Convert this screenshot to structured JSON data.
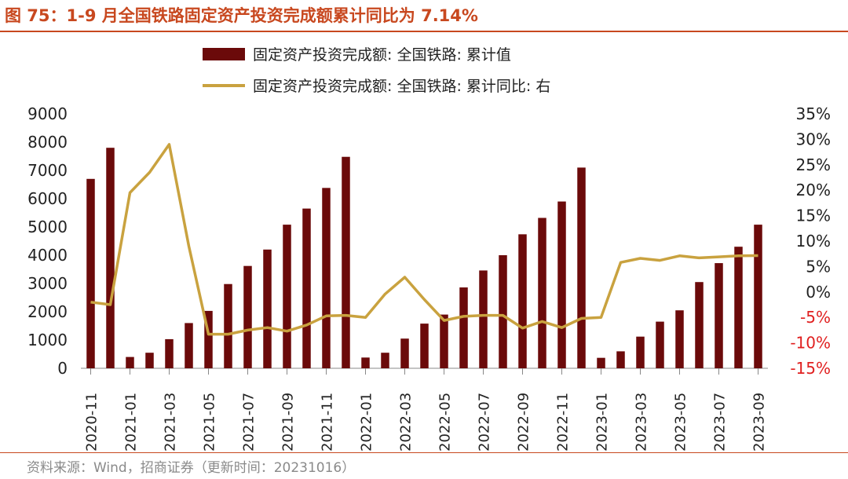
{
  "title": "图 75：1-9 月全国铁路固定资产投资完成额累计同比为 7.14%",
  "source": "资料来源：Wind，招商证券（更新时间：20231016）",
  "colors": {
    "bar": "#6b0a0a",
    "line": "#c9a23f",
    "accent": "#c8481f",
    "negative": "#e02020"
  },
  "chart_data": {
    "type": "bar+line",
    "categories": [
      "2020-11",
      "2020-12",
      "2021-01",
      "2021-02",
      "2021-03",
      "2021-04",
      "2021-05",
      "2021-06",
      "2021-07",
      "2021-08",
      "2021-09",
      "2021-10",
      "2021-11",
      "2021-12",
      "2022-01",
      "2022-02",
      "2022-03",
      "2022-04",
      "2022-05",
      "2022-06",
      "2022-07",
      "2022-08",
      "2022-09",
      "2022-10",
      "2022-11",
      "2022-12",
      "2023-01",
      "2023-02",
      "2023-03",
      "2023-04",
      "2023-05",
      "2023-06",
      "2023-07",
      "2023-08",
      "2023-09"
    ],
    "x_tick_labels": [
      "2020-11",
      "2021-01",
      "2021-03",
      "2021-05",
      "2021-07",
      "2021-09",
      "2021-11",
      "2022-01",
      "2022-03",
      "2022-05",
      "2022-07",
      "2022-09",
      "2022-11",
      "2023-01",
      "2023-03",
      "2023-05",
      "2023-07",
      "2023-09"
    ],
    "series": [
      {
        "name": "固定资产投资完成额: 全国铁路: 累计值",
        "axis": "left",
        "type": "bar",
        "values": [
          6700,
          7800,
          400,
          550,
          1030,
          1600,
          2030,
          2980,
          3620,
          4200,
          5080,
          5650,
          6380,
          7480,
          380,
          550,
          1050,
          1580,
          1900,
          2860,
          3460,
          4000,
          4740,
          5320,
          5900,
          7100,
          370,
          600,
          1120,
          1650,
          2050,
          3050,
          3720,
          4300,
          5080
        ]
      },
      {
        "name": "固定资产投资完成额: 全国铁路: 累计同比: 右",
        "axis": "right",
        "type": "line",
        "values": [
          -2.0,
          -2.5,
          19.5,
          23.5,
          29.0,
          9.0,
          -8.3,
          -8.3,
          -7.5,
          -7.0,
          -7.7,
          -6.5,
          -4.7,
          -4.6,
          -5.0,
          -0.4,
          2.9,
          -1.5,
          -5.6,
          -4.8,
          -4.6,
          -4.6,
          -7.1,
          -5.8,
          -7.0,
          -5.2,
          -5.0,
          5.8,
          6.6,
          6.2,
          7.1,
          6.7,
          6.9,
          7.1,
          7.14
        ]
      }
    ],
    "left_axis": {
      "min": 0,
      "max": 9000,
      "step": 1000,
      "tick_labels": [
        "0",
        "1000",
        "2000",
        "3000",
        "4000",
        "5000",
        "6000",
        "7000",
        "8000",
        "9000"
      ]
    },
    "right_axis": {
      "min": -15,
      "max": 35,
      "step": 5,
      "tick_labels": [
        "-15%",
        "-10%",
        "-5%",
        "0%",
        "5%",
        "10%",
        "15%",
        "20%",
        "25%",
        "30%",
        "35%"
      ]
    },
    "legend": [
      "固定资产投资完成额: 全国铁路: 累计值",
      "固定资产投资完成额: 全国铁路: 累计同比: 右"
    ],
    "legend_position": "top-center"
  }
}
